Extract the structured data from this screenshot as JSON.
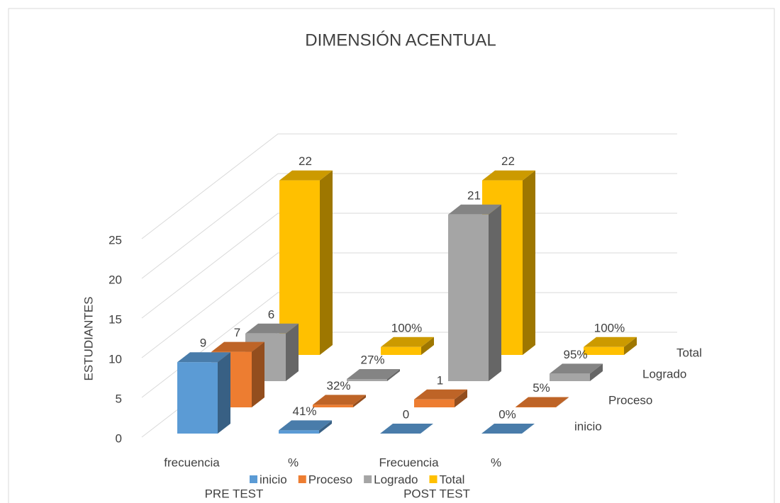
{
  "chart_data": {
    "type": "bar3d",
    "title": "DIMENSIÓN ACENTUAL",
    "y_label": "ESTUDIANTES",
    "categories": [
      "frecuencia",
      "%",
      "Frecuencia",
      "%"
    ],
    "groups": [
      "PRE TEST",
      "POST TEST"
    ],
    "series": [
      {
        "name": "inicio",
        "color": "#5b9bd5",
        "values": [
          9,
          0.41,
          0,
          0
        ],
        "value_labels": [
          "9",
          "41%",
          "0",
          "0%"
        ]
      },
      {
        "name": "Proceso",
        "color": "#ed7d31",
        "values": [
          7,
          0.32,
          1,
          0.05
        ],
        "value_labels": [
          "7",
          "32%",
          "1",
          "5%"
        ]
      },
      {
        "name": "Logrado",
        "color": "#a5a5a5",
        "values": [
          6,
          0.27,
          21,
          0.95
        ],
        "value_labels": [
          "6",
          "27%",
          "21",
          "95%"
        ]
      },
      {
        "name": "Total",
        "color": "#ffc000",
        "values": [
          22,
          1,
          22,
          1
        ],
        "value_labels": [
          "22",
          "100%",
          "22",
          "100%"
        ]
      }
    ],
    "ylim": [
      0,
      25
    ],
    "yticks": [
      0,
      5,
      10,
      15,
      20,
      25
    ],
    "grid": true,
    "legend": "bottom"
  }
}
